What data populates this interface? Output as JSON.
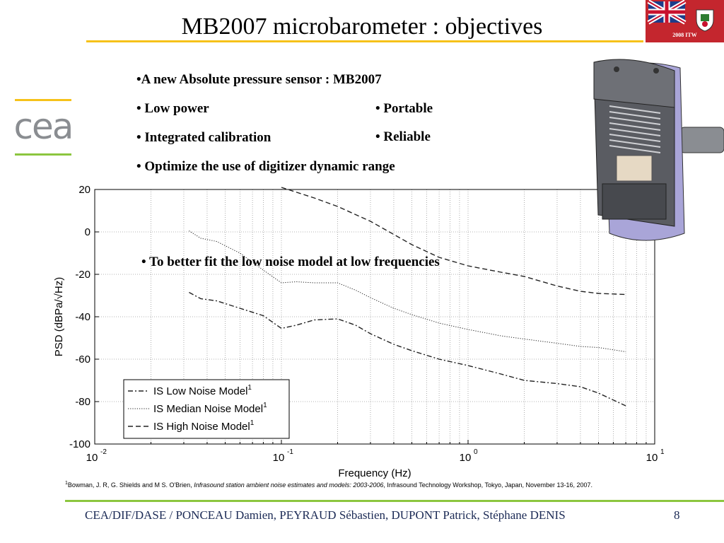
{
  "slide": {
    "title": "MB2007 microbarometer : objectives",
    "badge": "2008 ITW",
    "logo_text": "cea",
    "page_number": "8",
    "footer": "CEA/DIF/DASE / PONCEAU Damien, PEYRAUD Sébastien, DUPONT Patrick, Stéphane DENIS"
  },
  "bullets": {
    "absolute": "•A new Absolute pressure sensor : MB2007",
    "low_power": "• Low power",
    "portable": "• Portable",
    "calibration": "• Integrated calibration",
    "reliable": "• Reliable",
    "optimize": "• Optimize the use of digitizer dynamic range",
    "fit": "• To better fit the low noise model at low frequencies"
  },
  "reference": {
    "marker": "1",
    "authors": "Bowman, J. R, G. Shields and M S. O'Brien, ",
    "title_italic": "Infrasound station ambient noise estimates and models: 2003-2006",
    "rest": ", Infrasound Technology Workshop, Tokyo, Japan, November 13-16, 2007."
  },
  "chart_data": {
    "type": "line",
    "xscale": "log",
    "xlim": [
      0.01,
      10
    ],
    "ylim": [
      -100,
      20
    ],
    "xlabel": "Frequency (Hz)",
    "ylabel": "PSD (dBPa/√Hz)",
    "grid": true,
    "legend_position": "lower-left",
    "yticks": [
      20,
      0,
      -20,
      -40,
      -60,
      -80,
      -100
    ],
    "xticks": [
      {
        "base": "10",
        "exp": "-2",
        "value": 0.01
      },
      {
        "base": "10",
        "exp": "-1",
        "value": 0.1
      },
      {
        "base": "10",
        "exp": "0",
        "value": 1
      },
      {
        "base": "10",
        "exp": "1",
        "value": 10
      }
    ],
    "series": [
      {
        "name": "IS Low Noise Model",
        "superscript": "1",
        "style": "dashdot",
        "x": [
          0.032,
          0.037,
          0.045,
          0.06,
          0.08,
          0.1,
          0.12,
          0.15,
          0.2,
          0.25,
          0.3,
          0.4,
          0.5,
          0.7,
          1.0,
          1.5,
          2.0,
          3.0,
          4.0,
          5.0,
          7.0
        ],
        "y": [
          -28.5,
          -31.5,
          -32.5,
          -36,
          -39.5,
          -45.5,
          -44,
          -41.5,
          -41,
          -44,
          -48,
          -53,
          -56,
          -60,
          -63,
          -67,
          -70,
          -71.5,
          -73,
          -76,
          -82
        ]
      },
      {
        "name": "IS Median Noise Model",
        "superscript": "1",
        "style": "dotted",
        "x": [
          0.032,
          0.037,
          0.045,
          0.06,
          0.08,
          0.1,
          0.12,
          0.15,
          0.2,
          0.25,
          0.3,
          0.4,
          0.5,
          0.7,
          1.0,
          1.5,
          2.0,
          3.0,
          4.0,
          5.0,
          7.0
        ],
        "y": [
          0.5,
          -3,
          -4.5,
          -10,
          -18,
          -24,
          -23.5,
          -24,
          -24,
          -27.5,
          -31,
          -36,
          -39,
          -43,
          -46,
          -49,
          -50.5,
          -52.5,
          -54,
          -54.5,
          -56.5
        ]
      },
      {
        "name": "IS High Noise Model",
        "superscript": "1",
        "style": "dashed",
        "x": [
          0.1,
          0.15,
          0.2,
          0.3,
          0.5,
          0.7,
          1.0,
          1.5,
          2.0,
          3.0,
          4.0,
          5.0,
          7.0
        ],
        "y": [
          21,
          16,
          12,
          5,
          -6,
          -12,
          -16,
          -19,
          -21,
          -25.5,
          -28,
          -29,
          -29.5
        ]
      }
    ]
  }
}
